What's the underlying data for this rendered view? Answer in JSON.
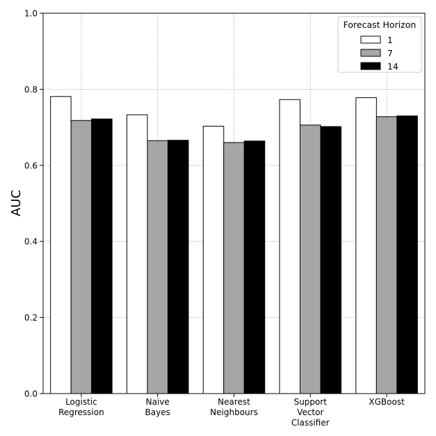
{
  "chart_data": {
    "type": "bar",
    "title": "",
    "xlabel": "",
    "ylabel": "AUC",
    "ylim": [
      0.0,
      1.0
    ],
    "yticks": [
      "0.0",
      "0.2",
      "0.4",
      "0.6",
      "0.8",
      "1.0"
    ],
    "grid": true,
    "categories": [
      [
        "Logistic",
        "Regression"
      ],
      [
        "Naive",
        "Bayes"
      ],
      [
        "Nearest",
        "Neighbours"
      ],
      [
        "Support",
        "Vector",
        "Classifier"
      ],
      [
        "XGBoost"
      ]
    ],
    "legend": {
      "title": "Forecast Horizon",
      "position": "top-right"
    },
    "series": [
      {
        "name": "1",
        "color": "#ffffff",
        "values": [
          0.781,
          0.733,
          0.703,
          0.773,
          0.778
        ]
      },
      {
        "name": "7",
        "color": "#a6a6a6",
        "values": [
          0.718,
          0.665,
          0.66,
          0.706,
          0.728
        ]
      },
      {
        "name": "14",
        "color": "#000000",
        "values": [
          0.722,
          0.666,
          0.664,
          0.702,
          0.73
        ]
      }
    ]
  }
}
